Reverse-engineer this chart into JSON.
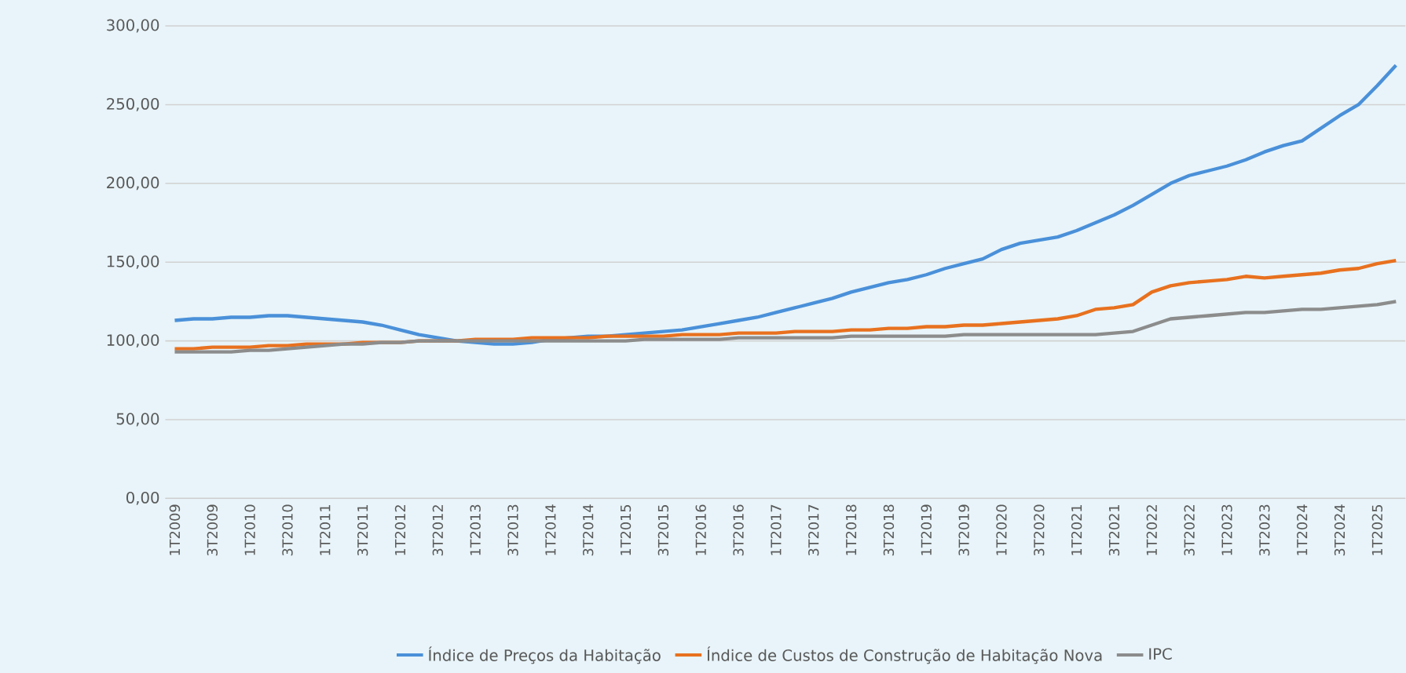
{
  "chart_data": {
    "type": "line",
    "categories": [
      "1T2009",
      null,
      "3T2009",
      null,
      "1T2010",
      null,
      "3T2010",
      null,
      "1T2011",
      null,
      "3T2011",
      null,
      "1T2012",
      null,
      "3T2012",
      null,
      "1T2013",
      null,
      "3T2013",
      null,
      "1T2014",
      null,
      "3T2014",
      null,
      "1T2015",
      null,
      "3T2015",
      null,
      "1T2016",
      null,
      "3T2016",
      null,
      "1T2017",
      null,
      "3T2017",
      null,
      "1T2018",
      null,
      "3T2018",
      null,
      "1T2019",
      null,
      "3T2019",
      null,
      "1T2020",
      null,
      "3T2020",
      null,
      "1T2021",
      null,
      "3T2021",
      null,
      "1T2022",
      null,
      "3T2022",
      null,
      "1T2023",
      null,
      "3T2023",
      null,
      "1T2024",
      null,
      "3T2024",
      null,
      "1T2025",
      null
    ],
    "series": [
      {
        "name": "Índice de Preços da Habitação",
        "color": "#4a90d9",
        "values": [
          113,
          114,
          114,
          115,
          115,
          116,
          116,
          115,
          114,
          113,
          112,
          110,
          107,
          104,
          102,
          100,
          99,
          98,
          98,
          99,
          101,
          102,
          103,
          103,
          104,
          105,
          106,
          107,
          109,
          111,
          113,
          115,
          118,
          121,
          124,
          127,
          131,
          134,
          137,
          139,
          142,
          146,
          149,
          152,
          158,
          162,
          164,
          166,
          170,
          175,
          180,
          186,
          193,
          200,
          205,
          208,
          211,
          215,
          220,
          224,
          227,
          235,
          243,
          250,
          262,
          275
        ]
      },
      {
        "name": "Índice de Custos de Construção de Habitação Nova",
        "color": "#e8711f",
        "values": [
          95,
          95,
          96,
          96,
          96,
          97,
          97,
          98,
          98,
          98,
          99,
          99,
          99,
          100,
          100,
          100,
          101,
          101,
          101,
          102,
          102,
          102,
          102,
          103,
          103,
          103,
          103,
          104,
          104,
          104,
          105,
          105,
          105,
          106,
          106,
          106,
          107,
          107,
          108,
          108,
          109,
          109,
          110,
          110,
          111,
          112,
          113,
          114,
          116,
          120,
          121,
          123,
          131,
          135,
          137,
          138,
          139,
          141,
          140,
          141,
          142,
          143,
          145,
          146,
          149,
          151
        ]
      },
      {
        "name": "IPC",
        "color": "#8c8c8c",
        "values": [
          93,
          93,
          93,
          93,
          94,
          94,
          95,
          96,
          97,
          98,
          98,
          99,
          99,
          100,
          100,
          100,
          100,
          100,
          100,
          100,
          100,
          100,
          100,
          100,
          100,
          101,
          101,
          101,
          101,
          101,
          102,
          102,
          102,
          102,
          102,
          102,
          103,
          103,
          103,
          103,
          103,
          103,
          104,
          104,
          104,
          104,
          104,
          104,
          104,
          104,
          105,
          106,
          110,
          114,
          115,
          116,
          117,
          118,
          118,
          119,
          120,
          120,
          121,
          122,
          123,
          125
        ]
      }
    ],
    "ylim": [
      0,
      300
    ],
    "yticks": [
      {
        "value": 0,
        "label": "0,00"
      },
      {
        "value": 50,
        "label": "50,00"
      },
      {
        "value": 100,
        "label": "100,00"
      },
      {
        "value": 150,
        "label": "150,00"
      },
      {
        "value": 200,
        "label": "200,00"
      },
      {
        "value": 250,
        "label": "250,00"
      },
      {
        "value": 300,
        "label": "300,00"
      }
    ],
    "grid": "y",
    "legend": "bottom",
    "marker": "none",
    "line_style": "solid"
  }
}
